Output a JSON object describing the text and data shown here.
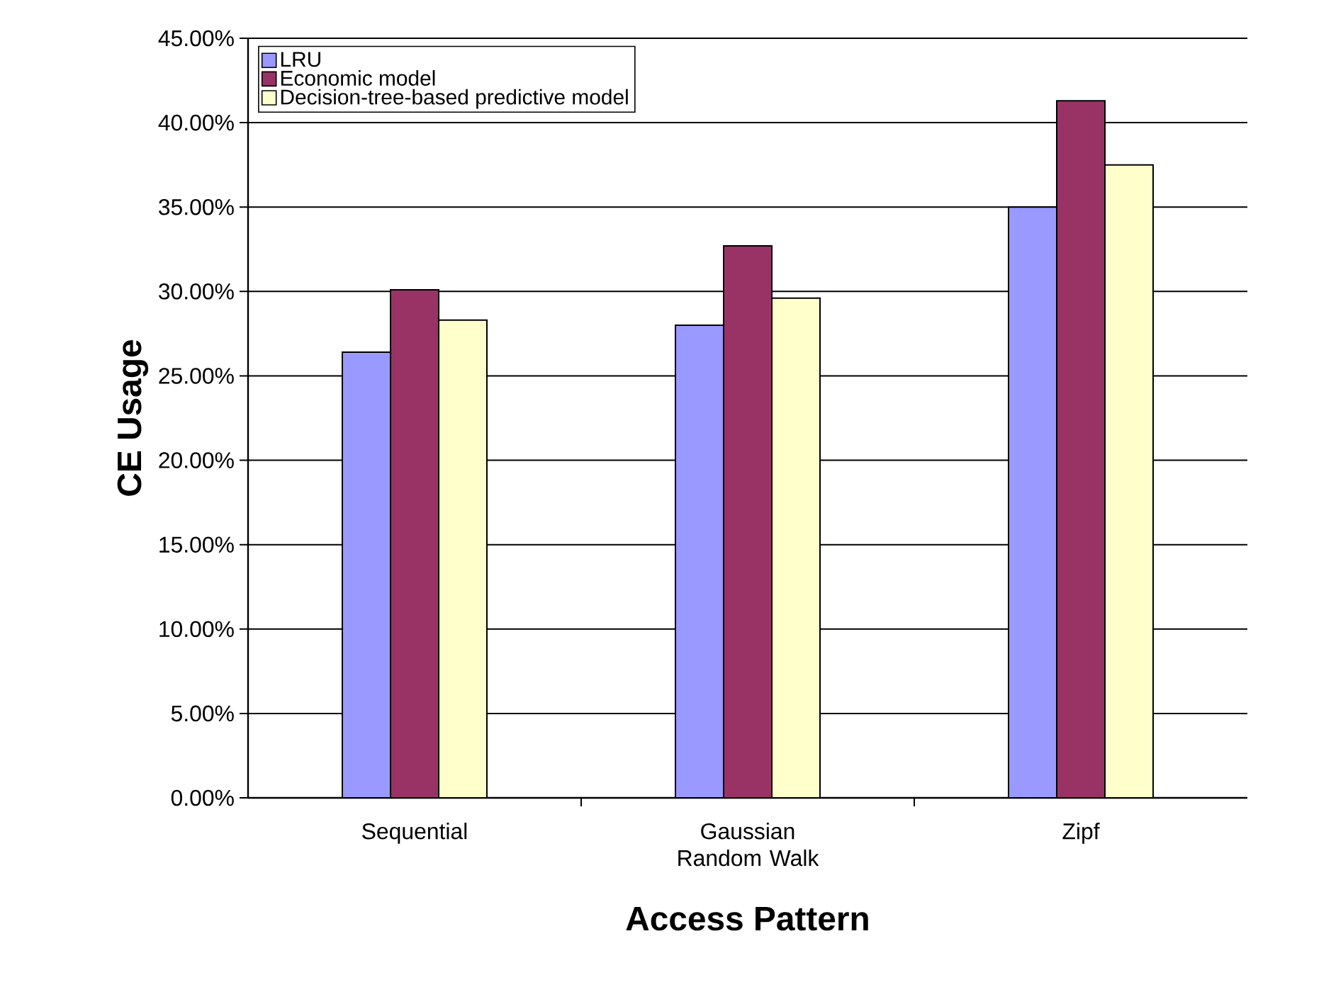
{
  "chart_data": {
    "type": "bar",
    "xlabel": "Access Pattern",
    "ylabel": "CE Usage",
    "categories": [
      "Sequential",
      "Gaussian Random Walk",
      "Zipf"
    ],
    "series": [
      {
        "name": "LRU",
        "color": "#9999ff",
        "values": [
          26.4,
          28.0,
          35.0
        ]
      },
      {
        "name": "Economic model",
        "color": "#993366",
        "values": [
          30.1,
          32.7,
          41.3
        ]
      },
      {
        "name": "Decision-tree-based predictive model",
        "color": "#ffffcc",
        "values": [
          28.3,
          29.6,
          37.5
        ]
      }
    ],
    "ylim": [
      0,
      45
    ],
    "yticks": [
      {
        "value": 0,
        "label": "0.00%"
      },
      {
        "value": 5,
        "label": "5.00%"
      },
      {
        "value": 10,
        "label": "10.00%"
      },
      {
        "value": 15,
        "label": "15.00%"
      },
      {
        "value": 20,
        "label": "20.00%"
      },
      {
        "value": 25,
        "label": "25.00%"
      },
      {
        "value": 30,
        "label": "30.00%"
      },
      {
        "value": 35,
        "label": "35.00%"
      },
      {
        "value": 40,
        "label": "40.00%"
      },
      {
        "value": 45,
        "label": "45.00%"
      }
    ],
    "grid": "y",
    "legend": "top left"
  }
}
